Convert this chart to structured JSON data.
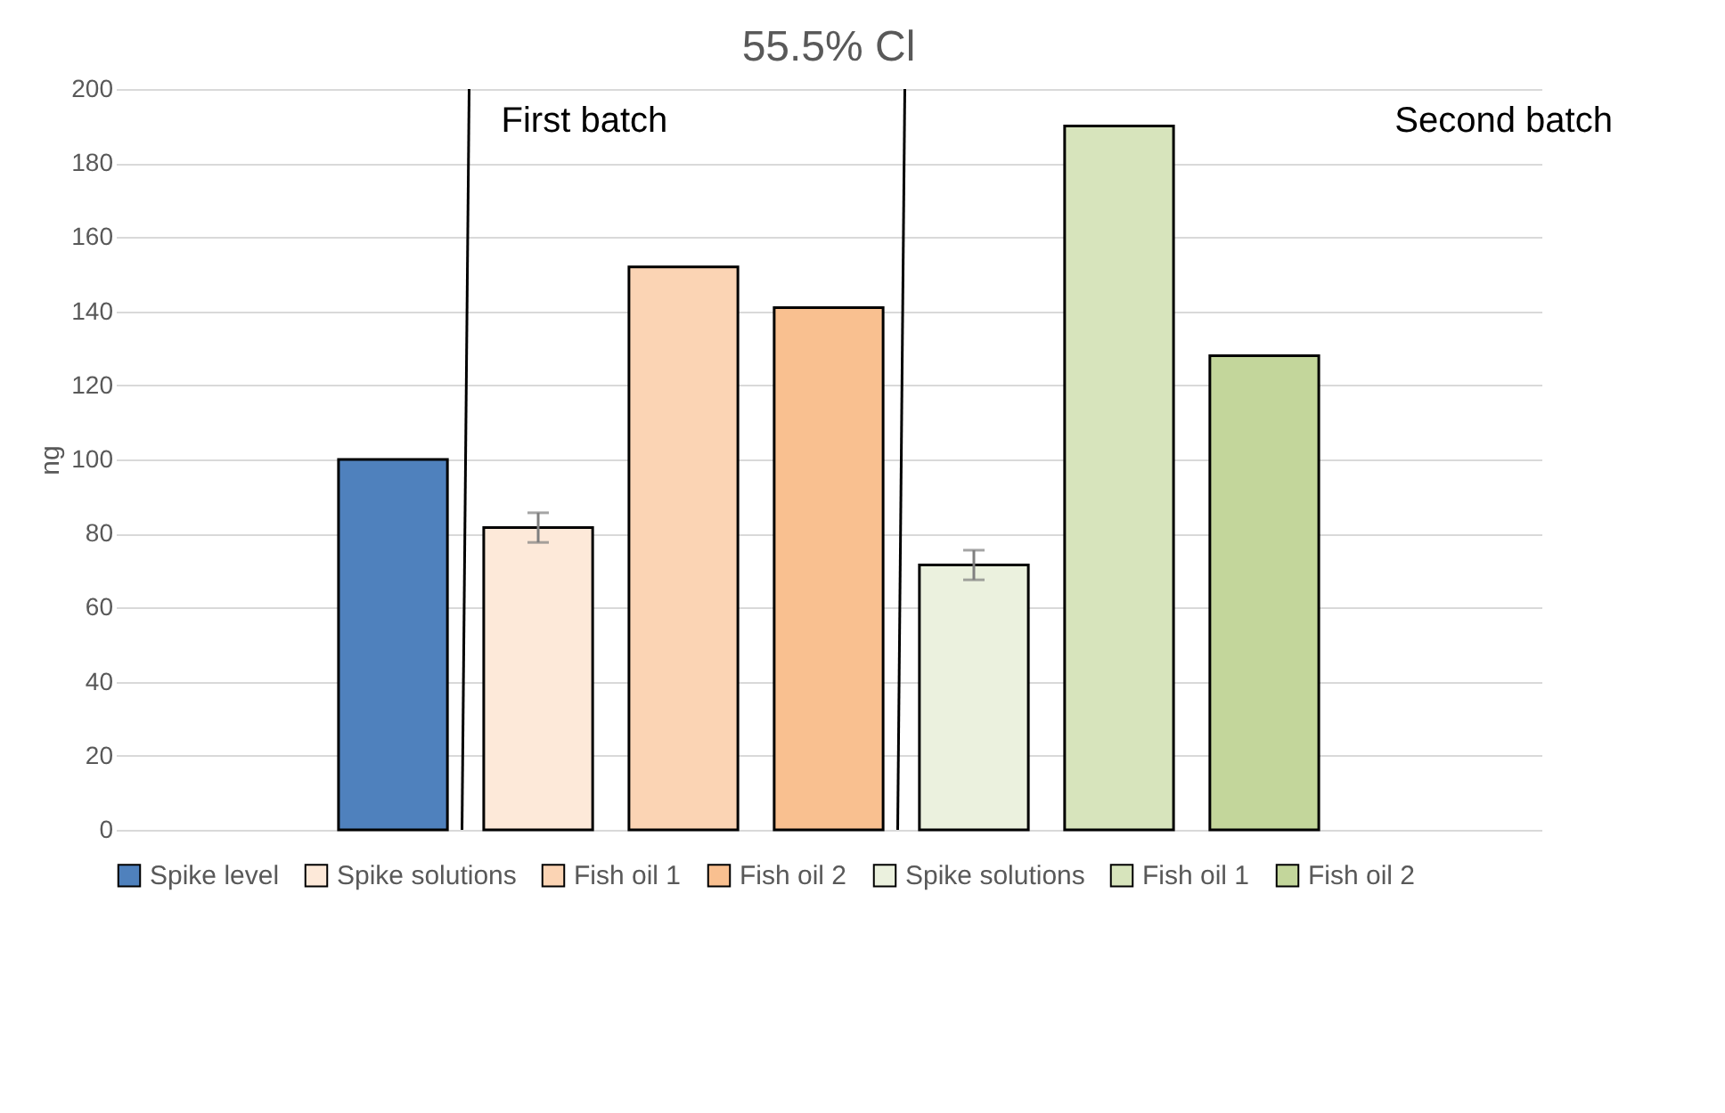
{
  "chart_data": {
    "type": "bar",
    "title": "55.5% Cl",
    "ylabel": "ng",
    "categories": [
      null
    ],
    "series": [
      {
        "name": "Spike level",
        "color": "#4f81bd",
        "values": [
          100
        ]
      },
      {
        "name": "Spike solutions",
        "color": "#fde9d9",
        "values": [
          81.6
        ],
        "errors": [
          4
        ]
      },
      {
        "name": "Fish oil 1",
        "color": "#fbd4b4",
        "values": [
          152
        ]
      },
      {
        "name": "Fish oil 2",
        "color": "#f9c090",
        "values": [
          141
        ]
      },
      {
        "name": "Spike solutions",
        "color": "#ebf1de",
        "values": [
          71.5
        ],
        "errors": [
          4
        ]
      },
      {
        "name": "Fish oil 1",
        "color": "#d7e4bc",
        "values": [
          190
        ]
      },
      {
        "name": "Fish oil 2",
        "color": "#c3d69b",
        "values": [
          128
        ]
      }
    ],
    "annotations": [
      "First batch",
      "Second batch"
    ],
    "ylim": [
      0,
      200
    ],
    "yticks": [
      0,
      20,
      40,
      60,
      80,
      100,
      120,
      140,
      160,
      180,
      200
    ],
    "grid": "y",
    "legend": "bottom",
    "tick_labels": "y"
  }
}
